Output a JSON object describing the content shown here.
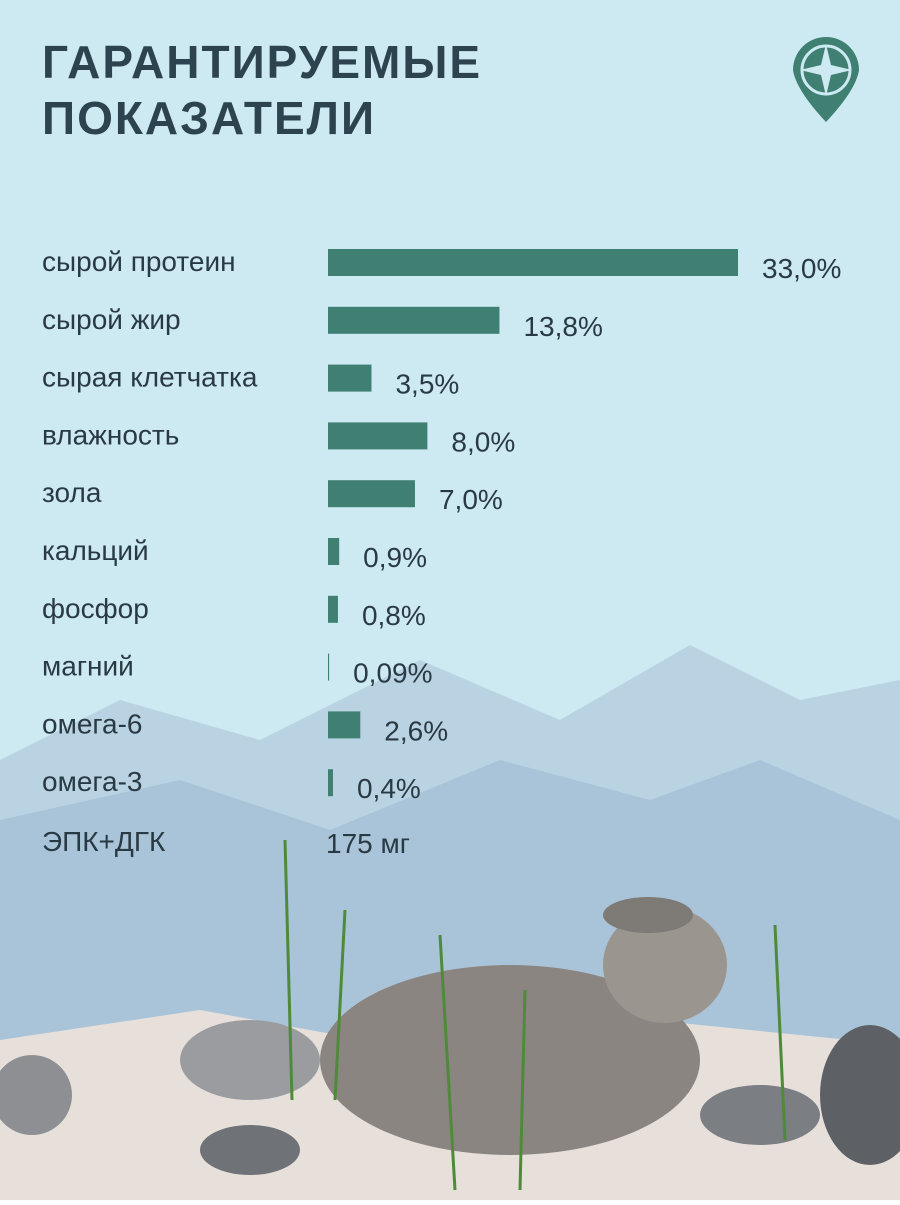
{
  "chart_data": {
    "type": "hbar",
    "title_lines": [
      "ГАРАНТИРУЕМЫЕ",
      "ПОКАЗАТЕЛИ"
    ],
    "categories": [
      "сырой протеин",
      "сырой жир",
      "сырая клетчатка",
      "влажность",
      "зола",
      "кальций",
      "фосфор",
      "магний",
      "омега-6",
      "омега-3"
    ],
    "values": [
      33.0,
      13.8,
      3.5,
      8.0,
      7.0,
      0.9,
      0.8,
      0.09,
      2.6,
      0.4
    ],
    "value_labels": [
      "33,0%",
      "13,8%",
      "3,5%",
      "8,0%",
      "7,0%",
      "0,9%",
      "0,8%",
      "0,09%",
      "2,6%",
      "0,4%"
    ],
    "color": "#3f8073",
    "xlim": [
      0,
      33
    ]
  },
  "extra_row": {
    "label": "ЭПК+ДГК",
    "text": "175 мг"
  }
}
